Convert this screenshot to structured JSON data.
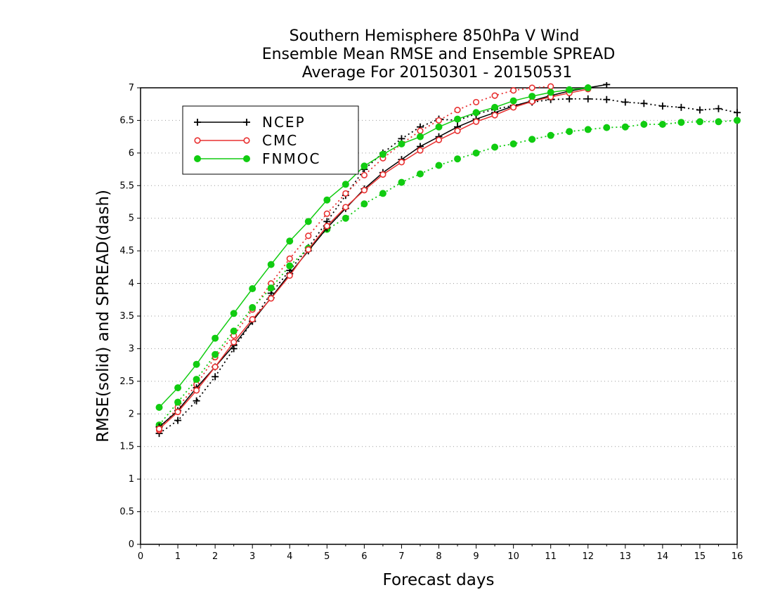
{
  "chart_data": {
    "type": "line",
    "title": [
      "Southern Hemisphere 850hPa V Wind",
      "Ensemble Mean RMSE and Ensemble SPREAD",
      "Average For 20150301 - 20150531"
    ],
    "xlabel": "Forecast days",
    "ylabel": "RMSE(solid) and SPREAD(dash)",
    "xlim": [
      0,
      16
    ],
    "ylim": [
      0,
      7
    ],
    "xticks": [
      0,
      1,
      2,
      3,
      4,
      5,
      6,
      7,
      8,
      9,
      10,
      11,
      12,
      13,
      14,
      15,
      16
    ],
    "yticks": [
      0,
      0.5,
      1,
      1.5,
      2,
      2.5,
      3,
      3.5,
      4,
      4.5,
      5,
      5.5,
      6,
      6.5,
      7
    ],
    "grid": "horizontal dotted",
    "legend_placement": "top-left",
    "x": [
      0.5,
      1,
      1.5,
      2,
      2.5,
      3,
      3.5,
      4,
      4.5,
      5,
      5.5,
      6,
      6.5,
      7,
      7.5,
      8,
      8.5,
      9,
      9.5,
      10,
      10.5,
      11,
      11.5,
      12,
      12.5,
      13,
      13.5,
      14,
      14.5,
      15,
      15.5,
      16
    ],
    "series": [
      {
        "name": "NCEP",
        "metric": "RMSE",
        "style": "solid",
        "marker": "plus",
        "color": "#000000",
        "values": [
          1.8,
          2.05,
          2.4,
          2.72,
          3.05,
          3.42,
          3.78,
          4.15,
          4.5,
          4.85,
          5.15,
          5.45,
          5.7,
          5.9,
          6.1,
          6.25,
          6.4,
          6.52,
          6.62,
          6.72,
          6.8,
          6.88,
          6.95,
          7.0,
          7.05,
          null,
          null,
          null,
          null,
          null,
          null,
          null
        ]
      },
      {
        "name": "NCEP",
        "metric": "SPREAD",
        "style": "dash",
        "marker": "plus",
        "color": "#000000",
        "values": [
          1.7,
          1.9,
          2.2,
          2.57,
          3.0,
          3.42,
          3.85,
          4.2,
          4.55,
          4.95,
          5.35,
          5.75,
          6.0,
          6.22,
          6.4,
          6.52,
          6.5,
          6.6,
          6.67,
          6.73,
          6.78,
          6.82,
          6.83,
          6.83,
          6.82,
          6.78,
          6.76,
          6.72,
          6.7,
          6.66,
          6.68,
          6.62
        ]
      },
      {
        "name": "CMC",
        "metric": "RMSE",
        "style": "solid",
        "marker": "open-circle",
        "color": "#e83030",
        "values": [
          1.77,
          2.03,
          2.36,
          2.72,
          3.1,
          3.45,
          3.77,
          4.12,
          4.52,
          4.88,
          5.17,
          5.43,
          5.67,
          5.86,
          6.04,
          6.2,
          6.34,
          6.48,
          6.58,
          6.7,
          6.79,
          6.86,
          6.92,
          6.98,
          null,
          null,
          null,
          null,
          null,
          null,
          null,
          null
        ]
      },
      {
        "name": "CMC",
        "metric": "SPREAD",
        "style": "dash",
        "marker": "open-circle",
        "color": "#e83030",
        "values": [
          1.75,
          2.1,
          2.45,
          2.87,
          3.2,
          3.6,
          4.0,
          4.38,
          4.73,
          5.07,
          5.38,
          5.66,
          5.92,
          6.14,
          6.34,
          6.5,
          6.66,
          6.78,
          6.88,
          6.96,
          7.0,
          7.02,
          null,
          null,
          null,
          null,
          null,
          null,
          null,
          null,
          null,
          null
        ]
      },
      {
        "name": "FNMOC",
        "metric": "RMSE",
        "style": "solid",
        "marker": "filled-circle",
        "color": "#11cc11",
        "values": [
          2.1,
          2.4,
          2.76,
          3.16,
          3.54,
          3.92,
          4.29,
          4.65,
          4.95,
          5.28,
          5.52,
          5.8,
          5.98,
          6.14,
          6.25,
          6.4,
          6.52,
          6.62,
          6.7,
          6.8,
          6.87,
          6.93,
          6.97,
          7.0,
          null,
          null,
          null,
          null,
          null,
          null,
          null,
          null
        ]
      },
      {
        "name": "FNMOC",
        "metric": "SPREAD",
        "style": "dash",
        "marker": "filled-circle",
        "color": "#11cc11",
        "values": [
          1.83,
          2.18,
          2.53,
          2.91,
          3.27,
          3.63,
          3.93,
          4.27,
          4.54,
          4.83,
          5.0,
          5.22,
          5.38,
          5.55,
          5.68,
          5.81,
          5.91,
          6.0,
          6.09,
          6.14,
          6.21,
          6.27,
          6.33,
          6.36,
          6.39,
          6.4,
          6.44,
          6.44,
          6.47,
          6.48,
          6.48,
          6.5
        ]
      }
    ],
    "legend": [
      {
        "name": "NCEP",
        "marker": "plus",
        "color": "#000000"
      },
      {
        "name": "CMC",
        "marker": "open-circle",
        "color": "#e83030"
      },
      {
        "name": "FNMOC",
        "marker": "filled-circle",
        "color": "#11cc11"
      }
    ]
  }
}
